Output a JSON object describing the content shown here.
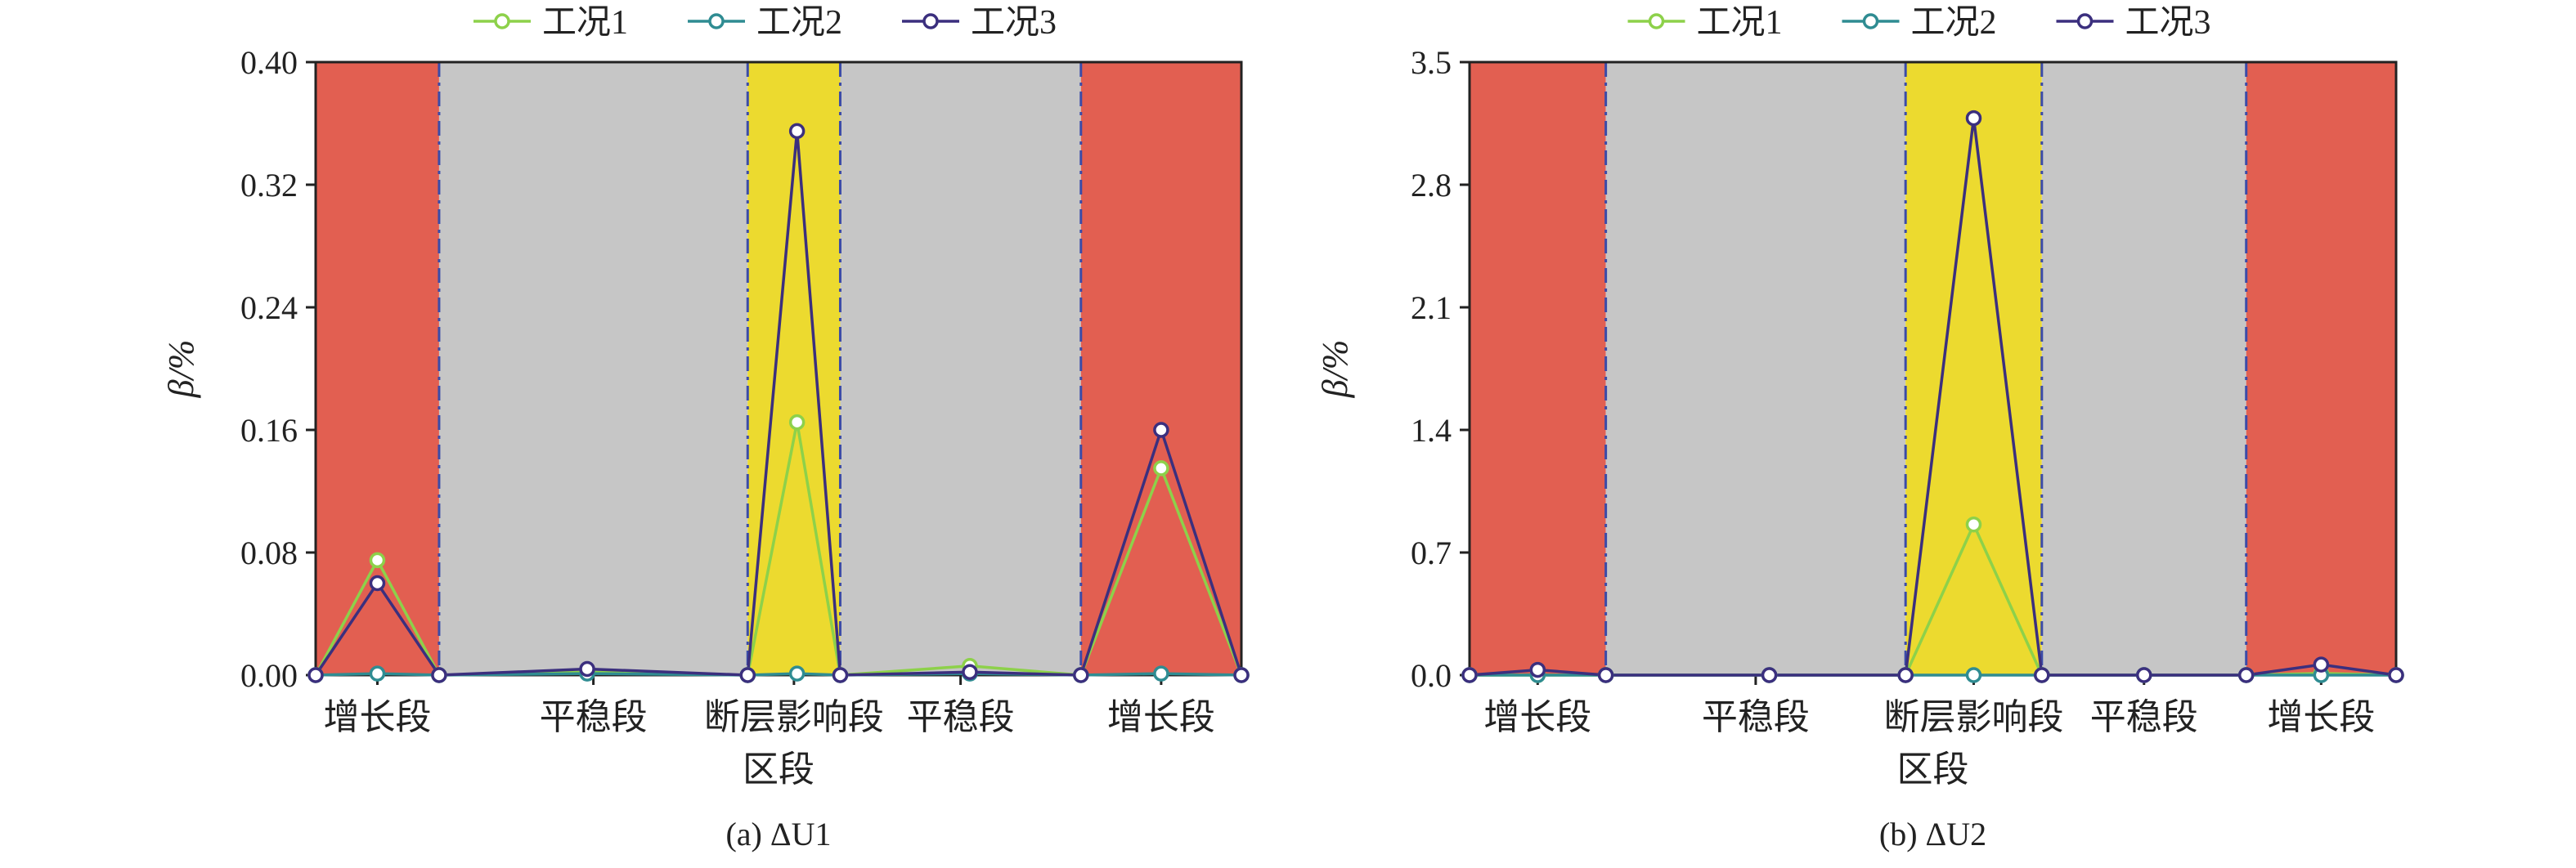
{
  "colors": {
    "grow": "#e25f51",
    "stable": "#c6c6c6",
    "fault": "#ecda2f",
    "boundary": "#3b4ba8",
    "series1": "#8dd14a",
    "series2": "#2f8c92",
    "series3": "#3b2f7e"
  },
  "chart_data": [
    {
      "type": "line",
      "caption": "(a) ΔU1",
      "xlabel": "区段",
      "ylabel": "β/%",
      "ylim": [
        0,
        0.4
      ],
      "yticks": [
        "0.00",
        "0.08",
        "0.16",
        "0.24",
        "0.32",
        "0.40"
      ],
      "legend": "top-center",
      "zones": [
        {
          "label": "增长段",
          "type": "grow",
          "x": [
            0,
            1
          ]
        },
        {
          "label": "平稳段",
          "type": "stable",
          "x": [
            1,
            3.5
          ]
        },
        {
          "label": "断层影响段",
          "type": "fault",
          "x": [
            3.5,
            4.25
          ]
        },
        {
          "label": "平稳段",
          "type": "stable",
          "x": [
            4.25,
            6.2
          ]
        },
        {
          "label": "增长段",
          "type": "grow",
          "x": [
            6.2,
            7.5
          ]
        }
      ],
      "x": [
        0,
        0.5,
        1,
        2.2,
        3.5,
        3.9,
        4.25,
        5.3,
        6.2,
        6.85,
        7.5
      ],
      "series": [
        {
          "name": "工况1",
          "values": [
            0.0,
            0.075,
            0.0,
            0.002,
            0.0,
            0.165,
            0.0,
            0.006,
            0.0,
            0.135,
            0.0
          ]
        },
        {
          "name": "工况2",
          "values": [
            0.0,
            0.001,
            0.0,
            0.001,
            0.0,
            0.001,
            0.0,
            0.001,
            0.0,
            0.001,
            0.0
          ]
        },
        {
          "name": "工况3",
          "values": [
            0.0,
            0.06,
            0.0,
            0.004,
            0.0,
            0.355,
            0.0,
            0.002,
            0.0,
            0.16,
            0.0
          ]
        }
      ]
    },
    {
      "type": "line",
      "caption": "(b) ΔU2",
      "xlabel": "区段",
      "ylabel": "β/%",
      "ylim": [
        0,
        3.5
      ],
      "yticks": [
        "0.0",
        "0.7",
        "1.4",
        "2.1",
        "2.8",
        "3.5"
      ],
      "legend": "top-center",
      "zones": [
        {
          "label": "增长段",
          "type": "grow",
          "x": [
            0,
            1
          ]
        },
        {
          "label": "平稳段",
          "type": "stable",
          "x": [
            1,
            3.2
          ]
        },
        {
          "label": "断层影响段",
          "type": "fault",
          "x": [
            3.2,
            4.2
          ]
        },
        {
          "label": "平稳段",
          "type": "stable",
          "x": [
            4.2,
            5.7
          ]
        },
        {
          "label": "增长段",
          "type": "grow",
          "x": [
            5.7,
            6.8
          ]
        }
      ],
      "x": [
        0,
        0.5,
        1,
        2.2,
        3.2,
        3.7,
        4.2,
        4.95,
        5.7,
        6.25,
        6.8
      ],
      "series": [
        {
          "name": "工况1",
          "values": [
            0.0,
            0.0,
            0.0,
            0.0,
            0.0,
            0.86,
            0.0,
            0.0,
            0.0,
            0.01,
            0.0
          ]
        },
        {
          "name": "工况2",
          "values": [
            0.0,
            0.0,
            0.0,
            0.0,
            0.0,
            0.0,
            0.0,
            0.0,
            0.0,
            0.0,
            0.0
          ]
        },
        {
          "name": "工况3",
          "values": [
            0.0,
            0.03,
            0.0,
            0.0,
            0.0,
            3.18,
            0.0,
            0.0,
            0.0,
            0.06,
            0.0
          ]
        }
      ]
    }
  ]
}
